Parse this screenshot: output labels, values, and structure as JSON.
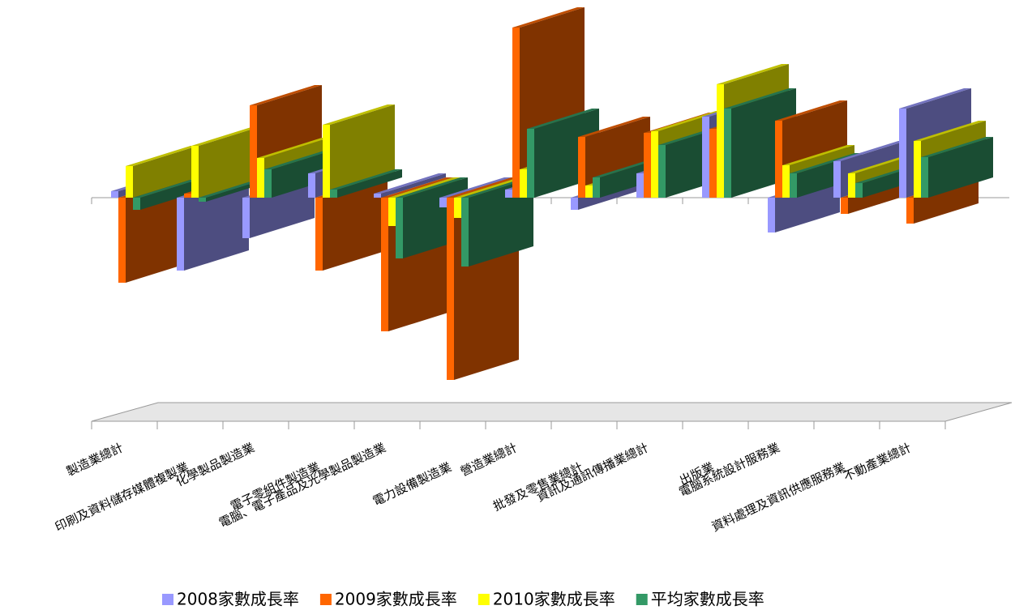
{
  "chart_data": {
    "type": "bar3d",
    "categories": [
      "製造業總計",
      "印刷及資料儲存媒體複製業",
      "化學製品製造業",
      "電子零組件製造業",
      "電腦、電子產品及光學製品製造業",
      "電力設備製造業",
      "營造業總計",
      "批發及零售業總計",
      "資訊及通訊傳播業總計",
      "出版業",
      "電腦系統設計服務業",
      "資料處理及資訊供應服務業",
      "不動產業總計"
    ],
    "series": [
      {
        "name": "2008家數成長率",
        "color": "#9999ff",
        "values": [
          0.8,
          -9,
          -5,
          3,
          0.5,
          -1.2,
          1,
          -1.5,
          3,
          10,
          -4.3,
          4.5,
          11
        ]
      },
      {
        "name": "2009家數成長率",
        "color": "#ff6600",
        "values": [
          -10.5,
          0.5,
          11.4,
          -9,
          -16.5,
          -22.5,
          21,
          7.5,
          8,
          8.5,
          9.5,
          -2,
          -3.2
        ]
      },
      {
        "name": "2010家數成長率",
        "color": "#ffff00",
        "values": [
          3.9,
          6.4,
          4.9,
          9,
          -3.5,
          -2.5,
          3.5,
          1.5,
          8.2,
          14,
          4,
          3,
          7
        ]
      },
      {
        "name": "平均家數成長率",
        "color": "#339966",
        "values": [
          -1.5,
          -0.5,
          3.5,
          1,
          -7.5,
          -8.5,
          8.5,
          2.5,
          6.5,
          11,
          3,
          1.8,
          5
        ]
      }
    ],
    "ylim": [
      -25,
      25
    ]
  }
}
